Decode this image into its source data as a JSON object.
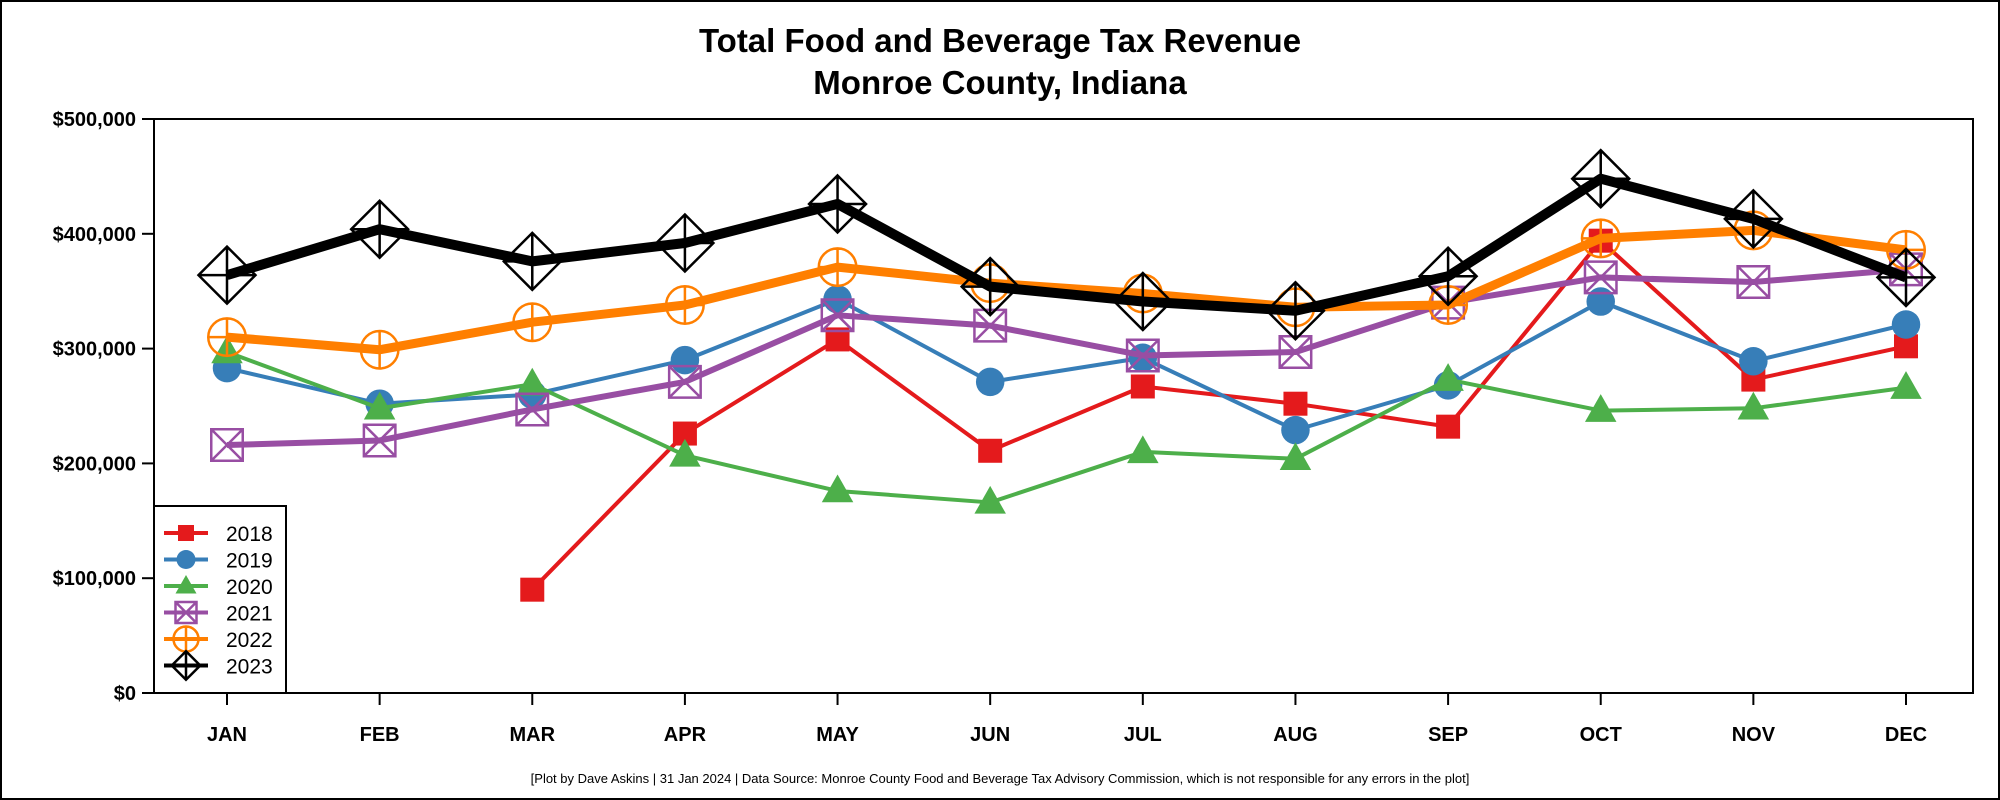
{
  "chart_data": {
    "type": "line",
    "title": "Total Food and Beverage Tax Revenue",
    "subtitle": "Monroe County, Indiana",
    "xlabel": "",
    "ylabel": "",
    "categories": [
      "JAN",
      "FEB",
      "MAR",
      "APR",
      "MAY",
      "JUN",
      "JUL",
      "AUG",
      "SEP",
      "OCT",
      "NOV",
      "DEC"
    ],
    "ylim": [
      0,
      500000
    ],
    "yticks": [
      0,
      100000,
      200000,
      300000,
      400000,
      500000
    ],
    "ytick_labels": [
      "$0",
      "$100,000",
      "$200,000",
      "$300,000",
      "$400,000",
      "$500,000"
    ],
    "grid": false,
    "legend_position": "bottom-left",
    "series": [
      {
        "name": "2018",
        "color": "#e41a1c",
        "marker": "filled-square",
        "values": [
          null,
          null,
          90000,
          226000,
          308000,
          211000,
          267000,
          252000,
          232000,
          394000,
          273000,
          302000
        ]
      },
      {
        "name": "2019",
        "color": "#377eb8",
        "marker": "filled-circle",
        "values": [
          283000,
          252000,
          260000,
          290000,
          343000,
          271000,
          292000,
          229000,
          268000,
          341000,
          289000,
          321000
        ]
      },
      {
        "name": "2020",
        "color": "#4daf4a",
        "marker": "filled-triangle",
        "values": [
          297000,
          248000,
          269000,
          207000,
          176000,
          166000,
          210000,
          204000,
          273000,
          246000,
          248000,
          266000
        ]
      },
      {
        "name": "2021",
        "color": "#984ea3",
        "marker": "square-x",
        "values": [
          216000,
          220000,
          247000,
          271000,
          329000,
          320000,
          294000,
          297000,
          340000,
          362000,
          358000,
          369000
        ]
      },
      {
        "name": "2022",
        "color": "#ff7f00",
        "marker": "circle-plus",
        "values": [
          310000,
          299000,
          323000,
          338000,
          371000,
          357000,
          348000,
          336000,
          338000,
          396000,
          403000,
          386000
        ]
      },
      {
        "name": "2023",
        "color": "#000000",
        "marker": "diamond-plus",
        "values": [
          364000,
          404000,
          376000,
          392000,
          426000,
          354000,
          341000,
          333000,
          363000,
          448000,
          413000,
          362000
        ]
      }
    ],
    "footnote": "[Plot by Dave Askins | 31 Jan 2024 | Data Source: Monroe County Food and Beverage Tax Advisory Commission, which is not responsible for any errors in the plot]"
  }
}
